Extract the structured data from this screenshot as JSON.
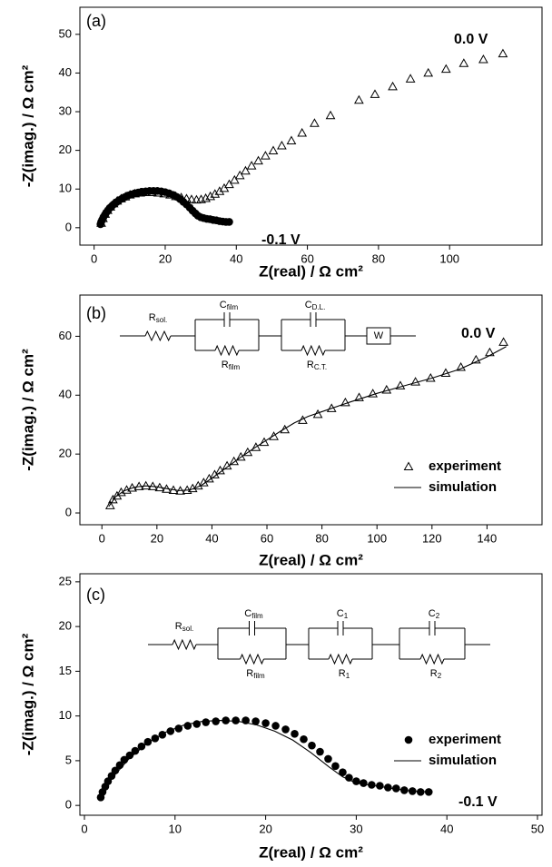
{
  "chart_data": [
    {
      "type": "scatter",
      "panel_label": "(a)",
      "xlabel": "Z(real) / Ω cm²",
      "ylabel": "-Z(imag.) / Ω cm²",
      "xlim": [
        -4,
        126
      ],
      "ylim": [
        -4.5,
        57
      ],
      "xticks": [
        0,
        20,
        40,
        60,
        80,
        100
      ],
      "yticks": [
        0,
        10,
        20,
        30,
        40,
        50
      ],
      "legend": false,
      "annotations": [],
      "circuit": [],
      "series": [
        {
          "name": "0.0 V",
          "marker": "triangle",
          "color": "#000000",
          "x": [
            2.0,
            2.5,
            3.1,
            3.8,
            4.6,
            5.5,
            6.5,
            7.6,
            8.8,
            10.1,
            11.5,
            13.0,
            14.6,
            16.3,
            18.0,
            19.7,
            21.4,
            23.0,
            24.5,
            26.0,
            27.4,
            28.8,
            30.1,
            31.4,
            32.7,
            34.0,
            35.3,
            36.6,
            38.0,
            39.5,
            41.0,
            42.6,
            44.3,
            46.2,
            48.2,
            50.4,
            52.8,
            55.5,
            58.5,
            62.0,
            66.5,
            74.5,
            79.0,
            84.0,
            89.0,
            94.0,
            99.0,
            104.0,
            109.5,
            115.0
          ],
          "values": [
            1.2,
            2.4,
            3.5,
            4.5,
            5.4,
            6.2,
            6.9,
            7.5,
            8.0,
            8.5,
            8.8,
            9.0,
            9.1,
            9.1,
            9.0,
            8.8,
            8.5,
            8.1,
            7.8,
            7.5,
            7.3,
            7.2,
            7.3,
            7.6,
            8.1,
            8.7,
            9.4,
            10.2,
            11.2,
            12.3,
            13.5,
            14.7,
            16.0,
            17.3,
            18.6,
            19.9,
            21.2,
            22.5,
            24.5,
            27.0,
            29.0,
            33.0,
            34.5,
            36.5,
            38.5,
            40.0,
            41.0,
            42.5,
            43.5,
            45.0
          ]
        },
        {
          "name": "-0.1 V",
          "marker": "circle",
          "color": "#000000",
          "x": [
            1.8,
            2.0,
            2.3,
            2.6,
            3.0,
            3.4,
            3.9,
            4.4,
            5.0,
            5.6,
            6.3,
            7.0,
            7.8,
            8.6,
            9.5,
            10.4,
            11.4,
            12.4,
            13.4,
            14.5,
            15.6,
            16.7,
            17.8,
            18.9,
            20.0,
            21.1,
            22.2,
            23.2,
            24.2,
            25.1,
            26.0,
            26.9,
            27.7,
            28.5,
            29.2,
            30.0,
            30.8,
            31.7,
            32.6,
            33.5,
            34.4,
            35.3,
            36.2,
            37.1,
            38.0
          ],
          "values": [
            0.9,
            1.5,
            2.1,
            2.7,
            3.3,
            3.9,
            4.5,
            5.1,
            5.6,
            6.1,
            6.6,
            7.1,
            7.5,
            7.9,
            8.3,
            8.6,
            8.9,
            9.1,
            9.3,
            9.4,
            9.5,
            9.5,
            9.5,
            9.4,
            9.2,
            8.9,
            8.5,
            8.0,
            7.4,
            6.7,
            6.0,
            5.2,
            4.4,
            3.7,
            3.1,
            2.7,
            2.5,
            2.3,
            2.2,
            2.0,
            1.9,
            1.7,
            1.6,
            1.5,
            1.5
          ]
        }
      ]
    },
    {
      "type": "scatter",
      "panel_label": "(b)",
      "xlabel": "Z(real) / Ω cm²",
      "ylabel": "-Z(imag.) / Ω cm²",
      "xlim": [
        -8,
        160
      ],
      "ylim": [
        -4,
        74
      ],
      "xticks": [
        0,
        20,
        40,
        60,
        80,
        100,
        120,
        140
      ],
      "yticks": [
        0,
        20,
        40,
        60
      ],
      "legend": true,
      "annotations": [
        "0.0 V"
      ],
      "circuit": [
        {
          "symbol": "R",
          "sub": "sol."
        },
        {
          "symbol": "C",
          "sub": "film"
        },
        {
          "symbol": "R",
          "sub": "film"
        },
        {
          "symbol": "C",
          "sub": "D.L."
        },
        {
          "symbol": "R",
          "sub": "C.T."
        },
        {
          "symbol": "W"
        }
      ],
      "series": [
        {
          "name": "experiment",
          "marker": "triangle",
          "color": "#000000",
          "x": [
            3.0,
            4.0,
            5.5,
            7.0,
            9.0,
            11.0,
            13.5,
            16.0,
            18.5,
            21.0,
            23.5,
            26.0,
            28.5,
            31.0,
            33.0,
            35.0,
            37.0,
            39.0,
            41.0,
            43.0,
            45.5,
            48.0,
            50.5,
            53.0,
            56.0,
            59.0,
            62.5,
            66.5,
            73.0,
            78.5,
            83.5,
            88.5,
            93.5,
            98.5,
            103.5,
            108.5,
            114.0,
            119.5,
            125.0,
            130.5,
            136.0,
            141.0,
            146.0
          ],
          "values": [
            2.5,
            4.5,
            5.8,
            7.0,
            7.8,
            8.5,
            9.0,
            9.2,
            9.0,
            8.6,
            8.1,
            7.7,
            7.5,
            7.7,
            8.3,
            9.2,
            10.3,
            11.6,
            13.0,
            14.4,
            16.0,
            17.5,
            19.0,
            20.6,
            22.3,
            24.0,
            26.0,
            28.3,
            31.5,
            33.5,
            35.5,
            37.5,
            39.2,
            40.5,
            41.8,
            43.2,
            44.5,
            45.8,
            47.5,
            49.5,
            52.0,
            54.5,
            58.0
          ]
        },
        {
          "name": "simulation",
          "marker": "line",
          "color": "#000000",
          "x": [
            2.5,
            5,
            8,
            12,
            16,
            20,
            24,
            28,
            32,
            36,
            40,
            45,
            50,
            55,
            60,
            65,
            70,
            75,
            80,
            90,
            100,
            110,
            120,
            130,
            140,
            147
          ],
          "values": [
            2.2,
            5.5,
            7.5,
            8.8,
            9.2,
            8.9,
            8.2,
            7.6,
            7.8,
            9.3,
            11.8,
            15.2,
            18.6,
            21.8,
            24.8,
            27.8,
            30.6,
            32.8,
            34.4,
            37.6,
            40.6,
            43.2,
            45.8,
            48.8,
            53.0,
            56.5
          ]
        }
      ]
    },
    {
      "type": "scatter",
      "panel_label": "(c)",
      "xlabel": "Z(real) / Ω cm²",
      "ylabel": "-Z(imag.) / Ω cm²",
      "xlim": [
        -0.5,
        50.5
      ],
      "ylim": [
        -1.1,
        25.9
      ],
      "xticks": [
        0,
        10,
        20,
        30,
        40,
        50
      ],
      "yticks": [
        0,
        5,
        10,
        15,
        20,
        25
      ],
      "legend": true,
      "annotations": [
        "-0.1 V"
      ],
      "circuit": [
        {
          "symbol": "R",
          "sub": "sol."
        },
        {
          "symbol": "C",
          "sub": "film"
        },
        {
          "symbol": "R",
          "sub": "film"
        },
        {
          "symbol": "C",
          "sub": "1"
        },
        {
          "symbol": "R",
          "sub": "1"
        },
        {
          "symbol": "C",
          "sub": "2"
        },
        {
          "symbol": "R",
          "sub": "2"
        }
      ],
      "series": [
        {
          "name": "experiment",
          "marker": "circle",
          "color": "#000000",
          "x": [
            1.8,
            2.0,
            2.3,
            2.6,
            3.0,
            3.4,
            3.9,
            4.4,
            5.0,
            5.6,
            6.3,
            7.0,
            7.8,
            8.6,
            9.5,
            10.4,
            11.4,
            12.4,
            13.4,
            14.5,
            15.6,
            16.7,
            17.8,
            18.9,
            20.0,
            21.1,
            22.2,
            23.2,
            24.2,
            25.1,
            26.0,
            26.9,
            27.7,
            28.5,
            29.2,
            30.0,
            30.8,
            31.7,
            32.6,
            33.5,
            34.4,
            35.3,
            36.2,
            37.1,
            38.0
          ],
          "values": [
            0.9,
            1.5,
            2.1,
            2.7,
            3.3,
            3.9,
            4.5,
            5.1,
            5.6,
            6.1,
            6.6,
            7.1,
            7.5,
            7.9,
            8.3,
            8.6,
            8.9,
            9.1,
            9.3,
            9.4,
            9.5,
            9.5,
            9.5,
            9.4,
            9.2,
            8.9,
            8.5,
            8.0,
            7.4,
            6.7,
            6.0,
            5.2,
            4.4,
            3.7,
            3.1,
            2.7,
            2.5,
            2.3,
            2.2,
            2.0,
            1.9,
            1.7,
            1.6,
            1.5,
            1.5
          ]
        },
        {
          "name": "simulation",
          "marker": "line",
          "color": "#000000",
          "x": [
            1.8,
            3,
            5,
            7,
            9,
            11,
            13,
            15,
            17,
            19,
            21,
            23,
            25,
            27,
            28.5,
            30,
            32,
            34,
            36,
            38.2
          ],
          "values": [
            0.9,
            3.0,
            5.3,
            7.0,
            8.2,
            9.0,
            9.4,
            9.5,
            9.4,
            9.0,
            8.3,
            7.3,
            5.9,
            4.3,
            3.2,
            2.5,
            2.2,
            1.9,
            1.6,
            1.5
          ]
        }
      ]
    }
  ]
}
